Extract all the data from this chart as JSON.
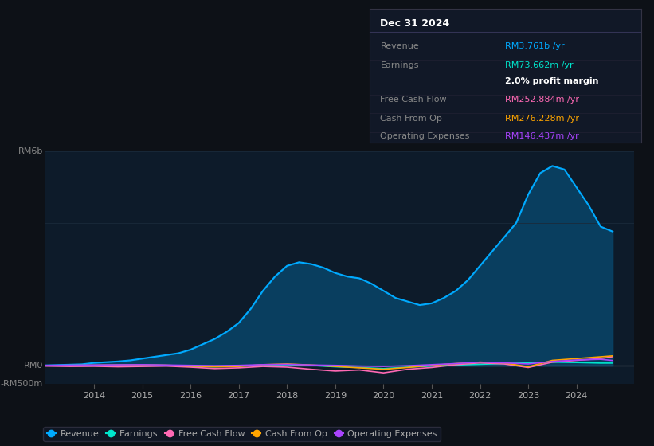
{
  "background_color": "#0d1117",
  "plot_bg_color": "#0d1b2a",
  "ylabel_top": "RM6b",
  "ylabel_mid": "RM0",
  "ylabel_bot": "-RM500m",
  "ylim": [
    -500,
    6000
  ],
  "info_box": {
    "title": "Dec 31 2024",
    "rows": [
      {
        "label": "Revenue",
        "value": "RM3.761b /yr",
        "value_color": "#00aaff"
      },
      {
        "label": "Earnings",
        "value": "RM73.662m /yr",
        "value_color": "#00e5cc"
      },
      {
        "label": "",
        "value": "2.0% profit margin",
        "value_color": "#ffffff",
        "bold": true
      },
      {
        "label": "Free Cash Flow",
        "value": "RM252.884m /yr",
        "value_color": "#ff69b4"
      },
      {
        "label": "Cash From Op",
        "value": "RM276.228m /yr",
        "value_color": "#ffa500"
      },
      {
        "label": "Operating Expenses",
        "value": "RM146.437m /yr",
        "value_color": "#aa44ff"
      }
    ]
  },
  "series": {
    "revenue": {
      "color": "#00aaff",
      "label": "Revenue",
      "x": [
        2013.0,
        2013.25,
        2013.5,
        2013.75,
        2014.0,
        2014.25,
        2014.5,
        2014.75,
        2015.0,
        2015.25,
        2015.5,
        2015.75,
        2016.0,
        2016.25,
        2016.5,
        2016.75,
        2017.0,
        2017.25,
        2017.5,
        2017.75,
        2018.0,
        2018.25,
        2018.5,
        2018.75,
        2019.0,
        2019.25,
        2019.5,
        2019.75,
        2020.0,
        2020.25,
        2020.5,
        2020.75,
        2021.0,
        2021.25,
        2021.5,
        2021.75,
        2022.0,
        2022.25,
        2022.5,
        2022.75,
        2023.0,
        2023.25,
        2023.5,
        2023.75,
        2024.0,
        2024.25,
        2024.5,
        2024.75
      ],
      "y": [
        10,
        20,
        30,
        40,
        80,
        100,
        120,
        150,
        200,
        250,
        300,
        350,
        450,
        600,
        750,
        950,
        1200,
        1600,
        2100,
        2500,
        2800,
        2900,
        2850,
        2750,
        2600,
        2500,
        2450,
        2300,
        2100,
        1900,
        1800,
        1700,
        1750,
        1900,
        2100,
        2400,
        2800,
        3200,
        3600,
        4000,
        4800,
        5400,
        5600,
        5500,
        5000,
        4500,
        3900,
        3761
      ]
    },
    "earnings": {
      "color": "#00e5cc",
      "label": "Earnings",
      "x": [
        2013.0,
        2013.5,
        2014.0,
        2014.5,
        2015.0,
        2015.5,
        2016.0,
        2016.5,
        2017.0,
        2017.5,
        2018.0,
        2018.5,
        2019.0,
        2019.5,
        2020.0,
        2020.5,
        2021.0,
        2021.5,
        2022.0,
        2022.5,
        2023.0,
        2023.5,
        2024.0,
        2024.5,
        2024.75
      ],
      "y": [
        5,
        8,
        10,
        15,
        20,
        10,
        -20,
        -30,
        -10,
        20,
        30,
        10,
        -30,
        -50,
        -80,
        -40,
        -10,
        20,
        40,
        60,
        80,
        100,
        90,
        74,
        73.662
      ]
    },
    "free_cash_flow": {
      "color": "#ff69b4",
      "label": "Free Cash Flow",
      "x": [
        2013.0,
        2013.5,
        2014.0,
        2014.5,
        2015.0,
        2015.5,
        2016.0,
        2016.5,
        2017.0,
        2017.5,
        2018.0,
        2018.5,
        2019.0,
        2019.5,
        2020.0,
        2020.5,
        2021.0,
        2021.5,
        2022.0,
        2022.5,
        2023.0,
        2023.5,
        2024.0,
        2024.5,
        2024.75
      ],
      "y": [
        -10,
        -20,
        -15,
        -30,
        -20,
        -10,
        -40,
        -80,
        -60,
        -20,
        -40,
        -100,
        -150,
        -120,
        -200,
        -100,
        -50,
        30,
        80,
        50,
        -50,
        100,
        150,
        200,
        252.884
      ]
    },
    "cash_from_op": {
      "color": "#ffa500",
      "label": "Cash From Op",
      "x": [
        2013.0,
        2013.5,
        2014.0,
        2014.5,
        2015.0,
        2015.5,
        2016.0,
        2016.5,
        2017.0,
        2017.5,
        2018.0,
        2018.5,
        2019.0,
        2019.5,
        2020.0,
        2020.5,
        2021.0,
        2021.5,
        2022.0,
        2022.5,
        2023.0,
        2023.5,
        2024.0,
        2024.5,
        2024.75
      ],
      "y": [
        5,
        10,
        15,
        20,
        25,
        15,
        -10,
        -30,
        -20,
        30,
        50,
        20,
        -20,
        -60,
        -100,
        -50,
        10,
        60,
        100,
        80,
        -30,
        150,
        200,
        250,
        276.228
      ]
    },
    "operating_expenses": {
      "color": "#aa44ff",
      "label": "Operating Expenses",
      "x": [
        2013.0,
        2013.5,
        2014.0,
        2014.5,
        2015.0,
        2015.5,
        2016.0,
        2016.5,
        2017.0,
        2017.5,
        2018.0,
        2018.5,
        2019.0,
        2019.5,
        2020.0,
        2020.5,
        2021.0,
        2021.5,
        2022.0,
        2022.5,
        2023.0,
        2023.5,
        2024.0,
        2024.5,
        2024.75
      ],
      "y": [
        10,
        15,
        20,
        25,
        30,
        20,
        10,
        0,
        10,
        30,
        40,
        20,
        10,
        -10,
        -20,
        0,
        30,
        60,
        100,
        80,
        50,
        120,
        160,
        180,
        146.437
      ]
    }
  },
  "legend": [
    {
      "label": "Revenue",
      "color": "#00aaff"
    },
    {
      "label": "Earnings",
      "color": "#00e5cc"
    },
    {
      "label": "Free Cash Flow",
      "color": "#ff69b4"
    },
    {
      "label": "Cash From Op",
      "color": "#ffa500"
    },
    {
      "label": "Operating Expenses",
      "color": "#aa44ff"
    }
  ],
  "xlim": [
    2013.0,
    2025.2
  ],
  "xticks": [
    2014,
    2015,
    2016,
    2017,
    2018,
    2019,
    2020,
    2021,
    2022,
    2023,
    2024
  ]
}
